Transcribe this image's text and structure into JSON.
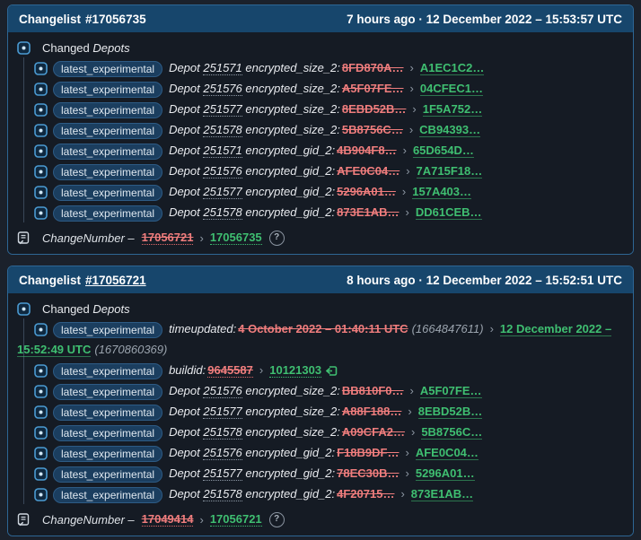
{
  "glyphs": {
    "arrow": "›",
    "help": "?"
  },
  "colors": {
    "page_bg": "#1b212b",
    "panel_bg": "#151b24",
    "panel_border": "#2e6694",
    "header_bg": "#17466c",
    "badge_bg": "#1b3e5f",
    "old_red": "#ef7d7d",
    "new_green": "#3fbf71",
    "icon_blue": "#4b9bd2"
  },
  "panels": [
    {
      "header": {
        "label": "Changelist",
        "number": "#17056735",
        "meta": "7 hours ago · 12 December 2022 – 15:53:57 UTC"
      },
      "section": {
        "label": "Changed",
        "target": "Depots"
      },
      "rows": [
        {
          "badge": "latest_experimental",
          "prefix": "Depot",
          "depot": "251571",
          "field": "encrypted_size_2:",
          "old": "8FD870A…",
          "new": "A1EC1C2…",
          "new_style": "solid"
        },
        {
          "badge": "latest_experimental",
          "prefix": "Depot",
          "depot": "251576",
          "field": "encrypted_size_2:",
          "old": "A5F07FE…",
          "new": "04CFEC1…",
          "new_style": "solid"
        },
        {
          "badge": "latest_experimental",
          "prefix": "Depot",
          "depot": "251577",
          "field": "encrypted_size_2:",
          "old": "8EBD52B…",
          "new": "1F5A752…",
          "new_style": "solid"
        },
        {
          "badge": "latest_experimental",
          "prefix": "Depot",
          "depot": "251578",
          "field": "encrypted_size_2:",
          "old": "5B8756C…",
          "new": "CB94393…",
          "new_style": "solid"
        },
        {
          "badge": "latest_experimental",
          "prefix": "Depot",
          "depot": "251571",
          "field": "encrypted_gid_2:",
          "old": "4B904F8…",
          "new": "65D654D…",
          "new_style": "solid"
        },
        {
          "badge": "latest_experimental",
          "prefix": "Depot",
          "depot": "251576",
          "field": "encrypted_gid_2:",
          "old": "AFE0C04…",
          "new": "7A715F18…",
          "new_style": "solid"
        },
        {
          "badge": "latest_experimental",
          "prefix": "Depot",
          "depot": "251577",
          "field": "encrypted_gid_2:",
          "old": "5296A01…",
          "new": "157A403…",
          "new_style": "solid"
        },
        {
          "badge": "latest_experimental",
          "prefix": "Depot",
          "depot": "251578",
          "field": "encrypted_gid_2:",
          "old": "873E1AB…",
          "new": "DD61CEB…",
          "new_style": "solid"
        }
      ],
      "footer": {
        "label": "ChangeNumber –",
        "old": "17056721",
        "new": "17056735"
      }
    },
    {
      "header": {
        "label": "Changelist",
        "number": "#17056721",
        "meta": "8 hours ago · 12 December 2022 – 15:52:51 UTC"
      },
      "section": {
        "label": "Changed",
        "target": "Depots"
      },
      "rows": [
        {
          "badge": "latest_experimental",
          "field": "timeupdated:",
          "old": "4 October 2022 – 01:40:11 UTC",
          "old_note": "(1664847611)",
          "new": "12 December 2022 – 15:52:49 UTC",
          "new_note": "(1670860369)",
          "new_style": "solid",
          "wrap": true
        },
        {
          "badge": "latest_experimental",
          "field": "buildid:",
          "old": "9645587",
          "old_dotted": true,
          "new": "10121303",
          "new_style": "dotted",
          "after_icon": true
        },
        {
          "badge": "latest_experimental",
          "prefix": "Depot",
          "depot": "251576",
          "field": "encrypted_size_2:",
          "old": "BB810F0…",
          "new": "A5F07FE…",
          "new_style": "solid"
        },
        {
          "badge": "latest_experimental",
          "prefix": "Depot",
          "depot": "251577",
          "field": "encrypted_size_2:",
          "old": "A88F188…",
          "new": "8EBD52B…",
          "new_style": "solid"
        },
        {
          "badge": "latest_experimental",
          "prefix": "Depot",
          "depot": "251578",
          "field": "encrypted_size_2:",
          "old": "A09CFA2…",
          "new": "5B8756C…",
          "new_style": "solid"
        },
        {
          "badge": "latest_experimental",
          "prefix": "Depot",
          "depot": "251576",
          "field": "encrypted_gid_2:",
          "old": "F18B9DF…",
          "new": "AFE0C04…",
          "new_style": "solid"
        },
        {
          "badge": "latest_experimental",
          "prefix": "Depot",
          "depot": "251577",
          "field": "encrypted_gid_2:",
          "old": "78EC30B…",
          "new": "5296A01…",
          "new_style": "solid"
        },
        {
          "badge": "latest_experimental",
          "prefix": "Depot",
          "depot": "251578",
          "field": "encrypted_gid_2:",
          "old": "4F20715…",
          "new": "873E1AB…",
          "new_style": "solid"
        }
      ],
      "footer": {
        "label": "ChangeNumber –",
        "old": "17049414",
        "new": "17056721"
      }
    }
  ]
}
